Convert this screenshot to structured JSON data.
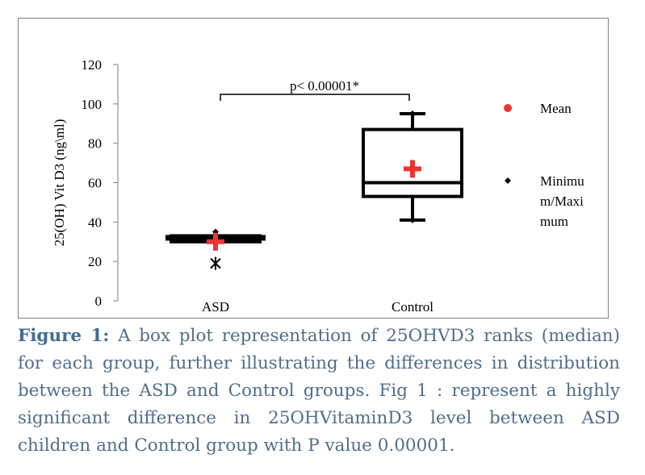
{
  "chart_data": {
    "type": "box",
    "ylabel": "25(OH) Vit D3 (ng\\ml)",
    "ylim": [
      0,
      120
    ],
    "yticks": [
      0,
      20,
      40,
      60,
      80,
      100,
      120
    ],
    "categories": [
      "ASD",
      "Control"
    ],
    "boxes": [
      {
        "name": "ASD",
        "min": 30,
        "q1": 30,
        "median": 32,
        "q3": 33,
        "max": 35,
        "mean": 30,
        "outliers": [
          19
        ]
      },
      {
        "name": "Control",
        "min": 41,
        "q1": 53,
        "median": 60,
        "q3": 87,
        "max": 95,
        "mean": 67,
        "outliers": []
      }
    ],
    "annotation": "p< 0.00001*",
    "legend": {
      "position": "right",
      "items": [
        "Mean",
        "Minimu\nm/Maxi\nmum"
      ]
    },
    "colors": {
      "mean": "#ee3333",
      "box": "#000000"
    }
  },
  "caption": {
    "label": "Figure 1:",
    "text": " A box plot representation of 25OHVD3 ranks (median) for each group, further illustrating the differences in distribution between the ASD and Control groups. Fig 1 : represent a highly significant difference in 25OHVitaminD3 level between ASD children and Control group with P value  0.00001."
  }
}
